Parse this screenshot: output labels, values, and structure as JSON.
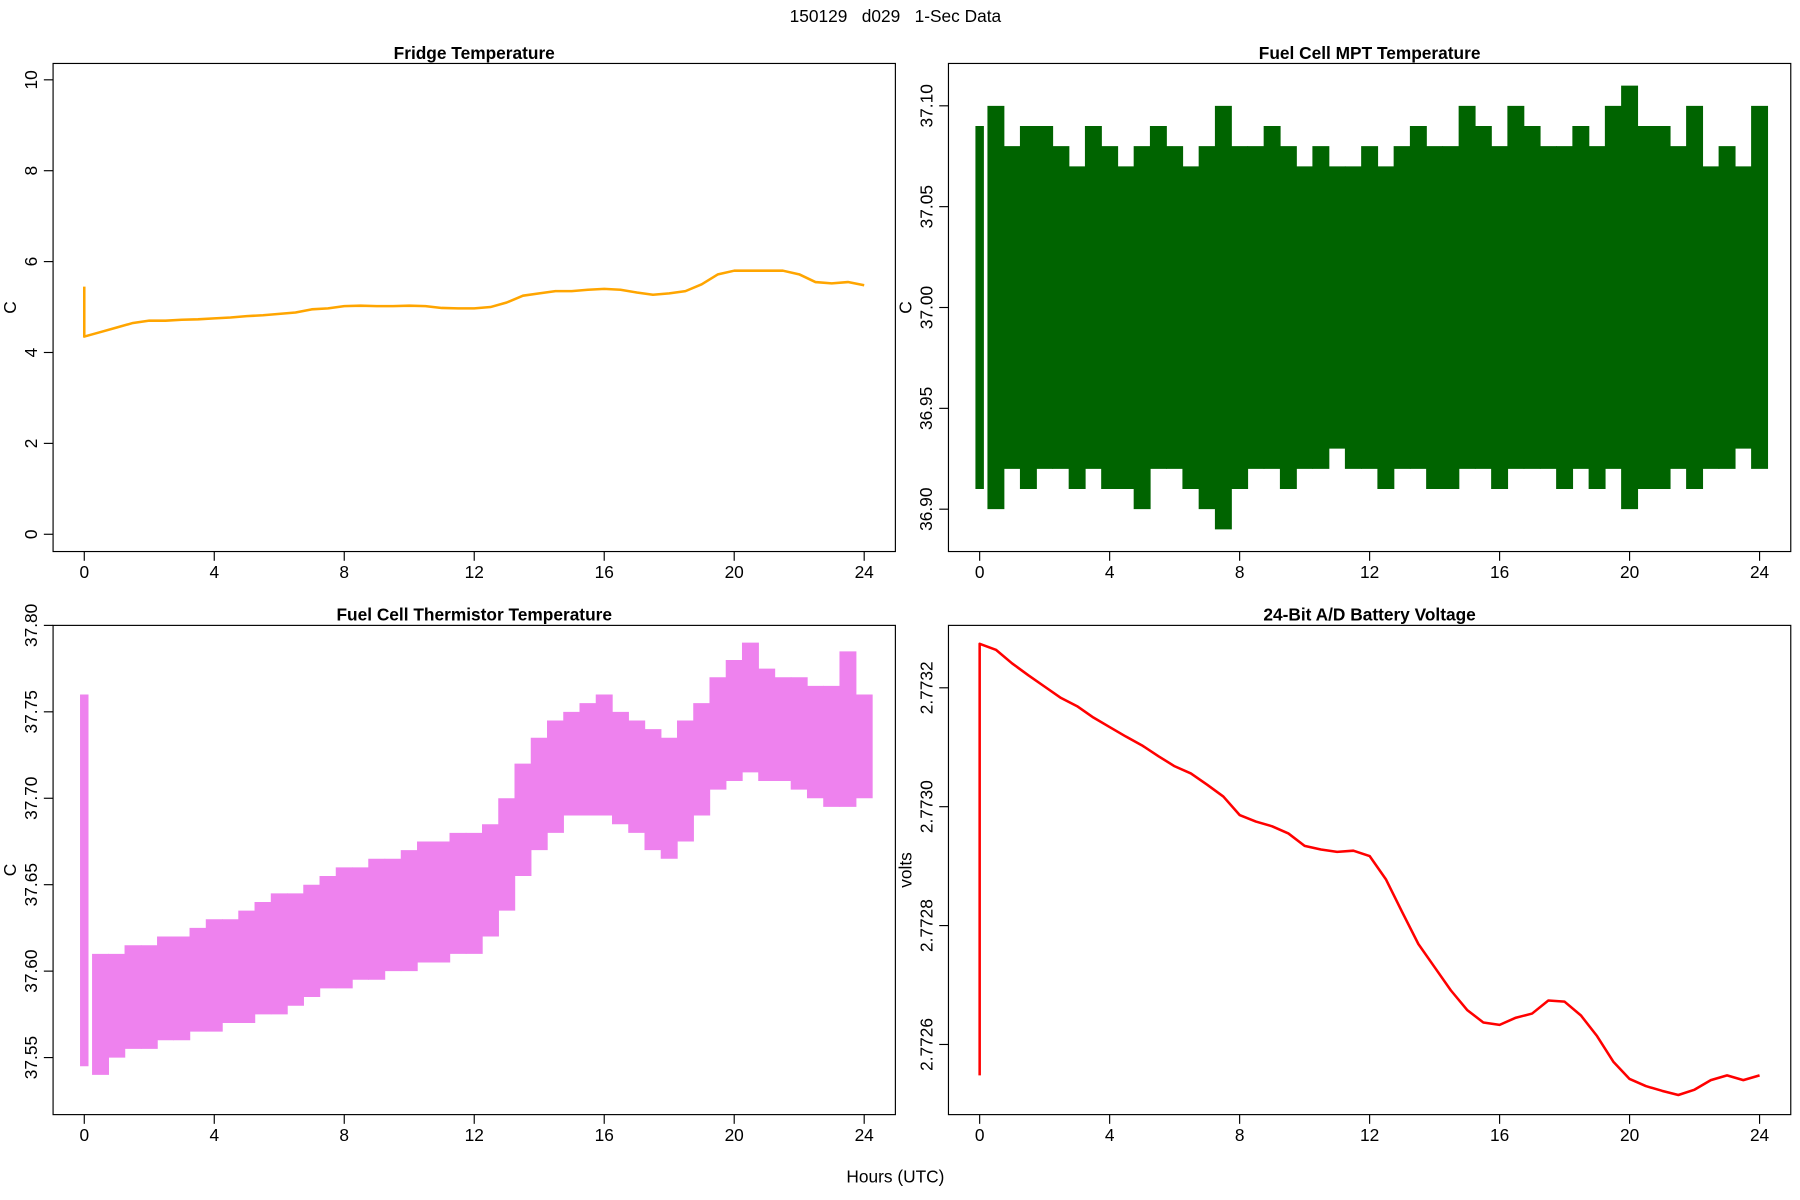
{
  "title": "150129   d029   1-Sec Data",
  "xlabel": "Hours (UTC)",
  "chart_data": [
    {
      "type": "line",
      "title": "Fridge Temperature",
      "ylabel": "C",
      "color": "#FFA500",
      "x": [
        0,
        0,
        0.5,
        1,
        1.5,
        2,
        2.5,
        3,
        3.5,
        4,
        4.5,
        5,
        5.5,
        6,
        6.5,
        7,
        7.5,
        8,
        8.5,
        9,
        9.5,
        10,
        10.5,
        11,
        11.5,
        12,
        12.5,
        13,
        13.5,
        14,
        14.5,
        15,
        15.5,
        16,
        16.5,
        17,
        17.5,
        18,
        18.5,
        19,
        19.5,
        20,
        20.5,
        21,
        21.5,
        22,
        22.5,
        23,
        23.5,
        24
      ],
      "values": [
        5.45,
        4.35,
        4.45,
        4.55,
        4.65,
        4.7,
        4.7,
        4.72,
        4.73,
        4.75,
        4.77,
        4.8,
        4.82,
        4.85,
        4.88,
        4.95,
        4.97,
        5.02,
        5.03,
        5.02,
        5.02,
        5.03,
        5.02,
        4.98,
        4.97,
        4.97,
        5.0,
        5.1,
        5.25,
        5.3,
        5.35,
        5.35,
        5.38,
        5.4,
        5.38,
        5.32,
        5.27,
        5.3,
        5.35,
        5.5,
        5.72,
        5.8,
        5.8,
        5.8,
        5.8,
        5.72,
        5.55,
        5.52,
        5.55,
        5.48
      ],
      "xlim": [
        -0.96,
        24.96
      ],
      "xticks": [
        0,
        4,
        8,
        12,
        16,
        20,
        24
      ],
      "ylim": [
        -0.38,
        10.36
      ],
      "yticks": [
        0,
        2,
        4,
        6,
        8,
        10
      ]
    },
    {
      "type": "range",
      "title": "Fuel Cell MPT Temperature",
      "ylabel": "C",
      "color": "#006400",
      "x": [
        0,
        0.5,
        1,
        1.5,
        2,
        2.5,
        3,
        3.5,
        4,
        4.5,
        5,
        5.5,
        6,
        6.5,
        7,
        7.5,
        8,
        8.5,
        9,
        9.5,
        10,
        10.5,
        11,
        11.5,
        12,
        12.5,
        13,
        13.5,
        14,
        14.5,
        15,
        15.5,
        16,
        16.5,
        17,
        17.5,
        18,
        18.5,
        19,
        19.5,
        20,
        20.5,
        21,
        21.5,
        22,
        22.5,
        23,
        23.5,
        24
      ],
      "low": [
        36.91,
        36.9,
        36.92,
        36.91,
        36.92,
        36.92,
        36.91,
        36.92,
        36.91,
        36.91,
        36.9,
        36.92,
        36.92,
        36.91,
        36.9,
        36.89,
        36.91,
        36.92,
        36.92,
        36.91,
        36.92,
        36.92,
        36.93,
        36.92,
        36.92,
        36.91,
        36.92,
        36.92,
        36.91,
        36.91,
        36.92,
        36.92,
        36.91,
        36.92,
        36.92,
        36.92,
        36.91,
        36.92,
        36.91,
        36.92,
        36.9,
        36.91,
        36.91,
        36.92,
        36.91,
        36.92,
        36.92,
        36.93,
        36.92
      ],
      "high": [
        37.09,
        37.1,
        37.08,
        37.09,
        37.09,
        37.08,
        37.07,
        37.09,
        37.08,
        37.07,
        37.08,
        37.09,
        37.08,
        37.07,
        37.08,
        37.1,
        37.08,
        37.08,
        37.09,
        37.08,
        37.07,
        37.08,
        37.07,
        37.07,
        37.08,
        37.07,
        37.08,
        37.09,
        37.08,
        37.08,
        37.1,
        37.09,
        37.08,
        37.1,
        37.09,
        37.08,
        37.08,
        37.09,
        37.08,
        37.1,
        37.11,
        37.09,
        37.09,
        37.08,
        37.1,
        37.07,
        37.08,
        37.07,
        37.1
      ],
      "xlim": [
        -0.96,
        24.96
      ],
      "xticks": [
        0,
        4,
        8,
        12,
        16,
        20,
        24
      ],
      "ylim": [
        36.879,
        37.121
      ],
      "yticks": [
        {
          "value": 36.9,
          "label": "36.90"
        },
        36.95,
        {
          "value": 37.0,
          "label": "37.00"
        },
        37.05,
        {
          "value": 37.1,
          "label": "37.10"
        }
      ]
    },
    {
      "type": "range",
      "title": "Fuel Cell Thermistor Temperature",
      "ylabel": "C",
      "color": "#EE82EE",
      "x": [
        0,
        0.5,
        1,
        1.5,
        2,
        2.5,
        3,
        3.5,
        4,
        4.5,
        5,
        5.5,
        6,
        6.5,
        7,
        7.5,
        8,
        8.5,
        9,
        9.5,
        10,
        10.5,
        11,
        11.5,
        12,
        12.5,
        13,
        13.5,
        14,
        14.5,
        15,
        15.5,
        16,
        16.5,
        17,
        17.5,
        18,
        18.5,
        19,
        19.5,
        20,
        20.5,
        21,
        21.5,
        22,
        22.5,
        23,
        23.5,
        24
      ],
      "low": [
        37.545,
        37.54,
        37.55,
        37.555,
        37.555,
        37.56,
        37.56,
        37.565,
        37.565,
        37.57,
        37.57,
        37.575,
        37.575,
        37.58,
        37.585,
        37.59,
        37.59,
        37.595,
        37.595,
        37.6,
        37.6,
        37.605,
        37.605,
        37.61,
        37.61,
        37.62,
        37.635,
        37.655,
        37.67,
        37.68,
        37.69,
        37.69,
        37.69,
        37.685,
        37.68,
        37.67,
        37.665,
        37.675,
        37.69,
        37.705,
        37.71,
        37.715,
        37.71,
        37.71,
        37.705,
        37.7,
        37.695,
        37.695,
        37.7
      ],
      "high": [
        37.76,
        37.61,
        37.61,
        37.615,
        37.615,
        37.62,
        37.62,
        37.625,
        37.63,
        37.63,
        37.635,
        37.64,
        37.645,
        37.645,
        37.65,
        37.655,
        37.66,
        37.66,
        37.665,
        37.665,
        37.67,
        37.675,
        37.675,
        37.68,
        37.68,
        37.685,
        37.7,
        37.72,
        37.735,
        37.745,
        37.75,
        37.755,
        37.76,
        37.75,
        37.745,
        37.74,
        37.735,
        37.745,
        37.755,
        37.77,
        37.78,
        37.79,
        37.775,
        37.77,
        37.77,
        37.765,
        37.765,
        37.785,
        37.76
      ],
      "xlim": [
        -0.96,
        24.96
      ],
      "xticks": [
        0,
        4,
        8,
        12,
        16,
        20,
        24
      ],
      "ylim": [
        37.517,
        37.8
      ],
      "yticks": [
        37.55,
        {
          "value": 37.6,
          "label": "37.60"
        },
        37.65,
        {
          "value": 37.7,
          "label": "37.70"
        },
        37.75,
        {
          "value": 37.8,
          "label": "37.80"
        }
      ]
    },
    {
      "type": "line",
      "title": "24-Bit A/D Battery Voltage",
      "ylabel": "volts",
      "color": "#FF0000",
      "x": [
        0,
        0,
        0.5,
        1,
        1.5,
        2,
        2.5,
        3,
        3.5,
        4,
        4.5,
        5,
        5.5,
        6,
        6.5,
        7,
        7.5,
        8,
        8.5,
        9,
        9.5,
        10,
        10.5,
        11,
        11.5,
        12,
        12.5,
        13,
        13.5,
        14,
        14.5,
        15,
        15.5,
        16,
        16.5,
        17,
        17.5,
        18,
        18.5,
        19,
        19.5,
        20,
        20.5,
        21,
        21.5,
        22,
        22.5,
        23,
        23.5,
        24
      ],
      "values": [
        2.772548,
        2.773274,
        2.773264,
        2.773241,
        2.773221,
        2.773202,
        2.773183,
        2.773169,
        2.77315,
        2.773134,
        2.773118,
        2.773103,
        2.773085,
        2.773068,
        2.773056,
        2.773037,
        2.773017,
        2.772986,
        2.772975,
        2.772967,
        2.772955,
        2.772934,
        2.772928,
        2.772924,
        2.772926,
        2.772917,
        2.772878,
        2.772823,
        2.772769,
        2.77273,
        2.772691,
        2.772658,
        2.772637,
        2.772633,
        2.772645,
        2.772652,
        2.772674,
        2.772672,
        2.772649,
        2.772614,
        2.772571,
        2.772542,
        2.77253,
        2.772522,
        2.772515,
        2.772524,
        2.77254,
        2.772548,
        2.77254,
        2.772548
      ],
      "xlim": [
        -0.96,
        24.96
      ],
      "xticks": [
        0,
        4,
        8,
        12,
        16,
        20,
        24
      ],
      "ylim": [
        2.772482,
        2.773305
      ],
      "yticks": [
        2.7726,
        2.7728,
        {
          "value": 2.773,
          "label": "2.7730"
        },
        2.7732
      ]
    }
  ]
}
